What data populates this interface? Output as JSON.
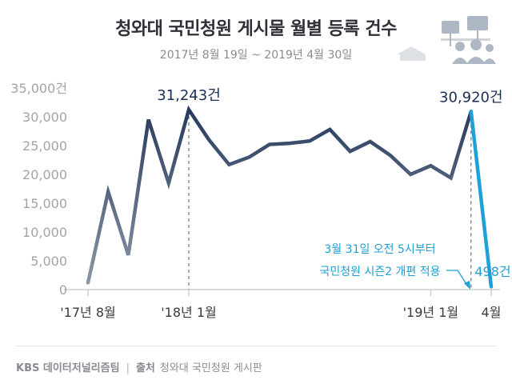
{
  "header": {
    "title": "청와대 국민청원 게시물 월별 등록 건수",
    "subtitle": "2017년 8월 19일 ~ 2019년 4월 30일"
  },
  "footer": {
    "brand": "KBS 데이터저널리즘팀",
    "source_label": "출처",
    "source": "청와대 국민청원 게시판"
  },
  "colors": {
    "line_dark": "#1b2f55",
    "line_light": "#8d9aa8",
    "highlight": "#1da1d6",
    "axis_text": "#a3a3aa",
    "label_dark": "#1b2f55"
  },
  "chart_data": {
    "type": "line",
    "y_unit_label": "35,000건",
    "ylim": [
      0,
      35000
    ],
    "yticks": [
      {
        "value": 0,
        "label": "0"
      },
      {
        "value": 5000,
        "label": "5,000"
      },
      {
        "value": 10000,
        "label": "10,000"
      },
      {
        "value": 15000,
        "label": "15,000"
      },
      {
        "value": 20000,
        "label": "20,000"
      },
      {
        "value": 25000,
        "label": "25,000"
      },
      {
        "value": 30000,
        "label": "30,000"
      },
      {
        "value": 35000,
        "label": "35,000건"
      }
    ],
    "x_tick_labels": [
      {
        "index": 0,
        "label": "'17년 8월"
      },
      {
        "index": 5,
        "label": "'18년 1월"
      },
      {
        "index": 17,
        "label": "'19년 1월"
      },
      {
        "index": 20,
        "label": "4월"
      }
    ],
    "x": [
      "2017-08",
      "2017-09",
      "2017-10",
      "2017-11",
      "2017-12",
      "2018-01",
      "2018-02",
      "2018-03",
      "2018-04",
      "2018-05",
      "2018-06",
      "2018-07",
      "2018-08",
      "2018-09",
      "2018-10",
      "2018-11",
      "2018-12",
      "2019-01",
      "2019-02",
      "2019-03",
      "2019-04"
    ],
    "values": [
      1200,
      17000,
      6000,
      29500,
      18500,
      31243,
      26000,
      21700,
      23000,
      25200,
      25400,
      25800,
      27800,
      24000,
      25700,
      23300,
      20000,
      21500,
      19400,
      30920,
      498
    ],
    "annotations": [
      {
        "index": 5,
        "label": "31,243건",
        "style": "dark"
      },
      {
        "index": 19,
        "label": "30,920건",
        "style": "dark"
      },
      {
        "index": 20,
        "label": "498건",
        "style": "highlight"
      }
    ],
    "callout": {
      "line1": "3월 31일 오전 5시부터",
      "line2": "국민청원 시즌2 개편 적용"
    },
    "grid": false
  }
}
